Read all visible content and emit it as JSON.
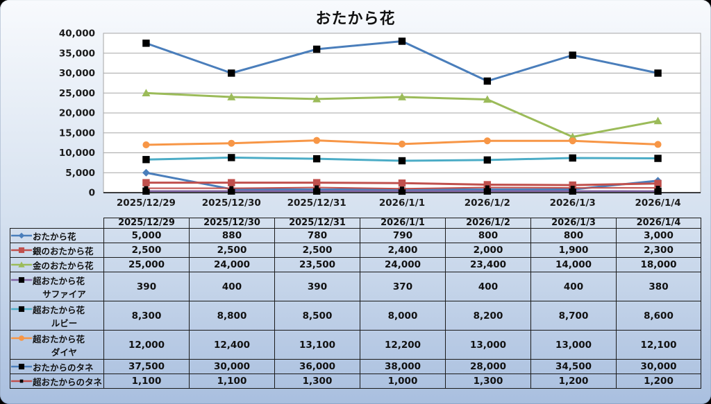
{
  "panel": {
    "background_top": "#f8fafd",
    "background_mid": "#d4e0ef",
    "background_bottom": "#a9bfdf",
    "corner_background": "#000000",
    "table_border_color": "#1a1a1a"
  },
  "chart_data": {
    "type": "line",
    "title": "おたから花",
    "xlabel": "",
    "ylabel": "",
    "ylim": [
      0,
      40000
    ],
    "ytick_step": 5000,
    "y_tick_labels": [
      "0",
      "5,000",
      "10,000",
      "15,000",
      "20,000",
      "25,000",
      "30,000",
      "35,000",
      "40,000"
    ],
    "grid": "horizontal",
    "grid_color": "#a6a6a6",
    "axis_color": "#000000",
    "plot_background": "#ffffff",
    "legend_position": "table-left-column",
    "categories": [
      "2025/12/29",
      "2025/12/30",
      "2025/12/31",
      "2026/1/1",
      "2026/1/2",
      "2026/1/3",
      "2026/1/4"
    ],
    "series": [
      {
        "name": "おたから花",
        "label_lines": [
          "おたから花"
        ],
        "color": "#4a7ebb",
        "marker": "diamond",
        "marker_color": "#4a7ebb",
        "line_width": 3,
        "values": [
          5000,
          880,
          780,
          790,
          800,
          800,
          3000
        ],
        "display": [
          "5,000",
          "880",
          "780",
          "790",
          "800",
          "800",
          "3,000"
        ]
      },
      {
        "name": "銀のおたから花",
        "label_lines": [
          "銀のおたから花"
        ],
        "color": "#c0504d",
        "marker": "square",
        "marker_color": "#c0504d",
        "line_width": 3,
        "values": [
          2500,
          2500,
          2500,
          2400,
          2000,
          1900,
          2300
        ],
        "display": [
          "2,500",
          "2,500",
          "2,500",
          "2,400",
          "2,000",
          "1,900",
          "2,300"
        ]
      },
      {
        "name": "金のおたから花",
        "label_lines": [
          "金のおたから花"
        ],
        "color": "#9bbb59",
        "marker": "triangle",
        "marker_color": "#9bbb59",
        "line_width": 3,
        "values": [
          25000,
          24000,
          23500,
          24000,
          23400,
          14000,
          18000
        ],
        "display": [
          "25,000",
          "24,000",
          "23,500",
          "24,000",
          "23,400",
          "14,000",
          "18,000"
        ]
      },
      {
        "name": "超おたから花 サファイア",
        "label_lines": [
          "超おたから花",
          "サファイア"
        ],
        "color": "#8064a2",
        "marker": "square",
        "marker_color": "#000000",
        "line_width": 2.5,
        "values": [
          390,
          400,
          390,
          370,
          400,
          400,
          380
        ],
        "display": [
          "390",
          "400",
          "390",
          "370",
          "400",
          "400",
          "380"
        ]
      },
      {
        "name": "超おたから花 ルビー",
        "label_lines": [
          "超おたから花",
          "ルビー"
        ],
        "color": "#4bacc6",
        "marker": "square",
        "marker_color": "#000000",
        "line_width": 3,
        "values": [
          8300,
          8800,
          8500,
          8000,
          8200,
          8700,
          8600
        ],
        "display": [
          "8,300",
          "8,800",
          "8,500",
          "8,000",
          "8,200",
          "8,700",
          "8,600"
        ]
      },
      {
        "name": "超おたから花 ダイヤ",
        "label_lines": [
          "超おたから花",
          "ダイヤ"
        ],
        "color": "#f79646",
        "marker": "circle",
        "marker_color": "#f79646",
        "line_width": 3,
        "values": [
          12000,
          12400,
          13100,
          12200,
          13000,
          13000,
          12100
        ],
        "display": [
          "12,000",
          "12,400",
          "13,100",
          "12,200",
          "13,000",
          "13,000",
          "12,100"
        ]
      },
      {
        "name": "おたからのタネ",
        "label_lines": [
          "おたからのタネ"
        ],
        "color": "#4a7ebb",
        "marker": "square",
        "marker_color": "#000000",
        "line_width": 3,
        "values": [
          37500,
          30000,
          36000,
          38000,
          28000,
          34500,
          30000
        ],
        "display": [
          "37,500",
          "30,000",
          "36,000",
          "38,000",
          "28,000",
          "34,500",
          "30,000"
        ]
      },
      {
        "name": "超おたからのタネ",
        "label_lines": [
          "超おたからのタネ"
        ],
        "color": "#c0504d",
        "marker": "square-small",
        "marker_color": "#000000",
        "line_width": 2,
        "values": [
          1100,
          1100,
          1300,
          1000,
          1300,
          1200,
          1200
        ],
        "display": [
          "1,100",
          "1,100",
          "1,300",
          "1,000",
          "1,300",
          "1,200",
          "1,200"
        ]
      }
    ]
  },
  "table": {
    "header": [
      "2025/12/29",
      "2025/12/30",
      "2025/12/31",
      "2026/1/1",
      "2026/1/2",
      "2026/1/3",
      "2026/1/4"
    ]
  }
}
